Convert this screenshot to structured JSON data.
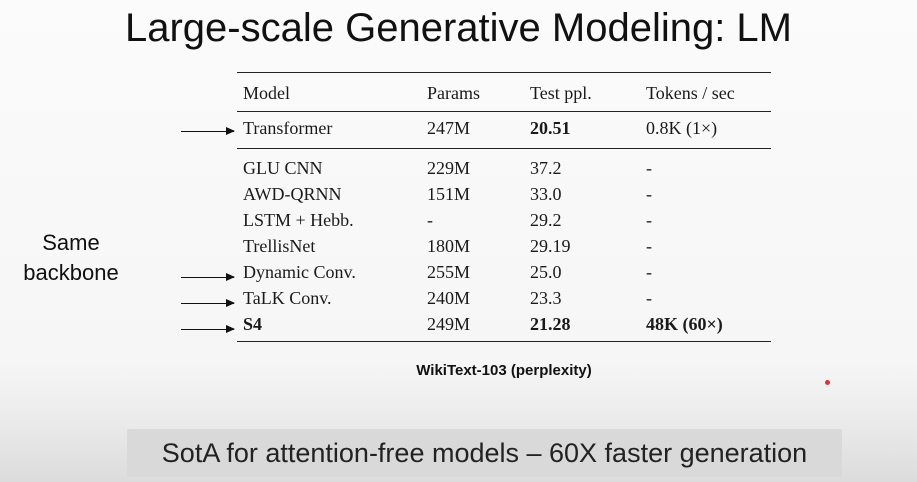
{
  "slide": {
    "title": "Large-scale Generative Modeling: LM",
    "side_label_line1": "Same",
    "side_label_line2": "backbone",
    "caption": "WikiText-103 (perplexity)",
    "footer": "SotA for attention-free models – 60X faster generation"
  },
  "table": {
    "headers": [
      "Model",
      "Params",
      "Test ppl.",
      "Tokens / sec"
    ],
    "rows": [
      {
        "model": "Transformer",
        "params": "247M",
        "ppl": "20.51",
        "tokens": "0.8K (1×)",
        "arrow": true
      },
      {
        "model": "GLU CNN",
        "params": "229M",
        "ppl": "37.2",
        "tokens": "-",
        "arrow": false
      },
      {
        "model": "AWD-QRNN",
        "params": "151M",
        "ppl": "33.0",
        "tokens": "-",
        "arrow": false
      },
      {
        "model": "LSTM + Hebb.",
        "params": "-",
        "ppl": "29.2",
        "tokens": "-",
        "arrow": false
      },
      {
        "model": "TrellisNet",
        "params": "180M",
        "ppl": "29.19",
        "tokens": "-",
        "arrow": false
      },
      {
        "model": "Dynamic Conv.",
        "params": "255M",
        "ppl": "25.0",
        "tokens": "-",
        "arrow": true
      },
      {
        "model": "TaLK Conv.",
        "params": "240M",
        "ppl": "23.3",
        "tokens": "-",
        "arrow": true
      },
      {
        "model": "S4",
        "params": "249M",
        "ppl": "21.28",
        "tokens": "48K (60×)",
        "arrow": true
      }
    ]
  },
  "colors": {
    "accent_dot": "#dd3333",
    "footer_bg": "#d9d9d9"
  }
}
